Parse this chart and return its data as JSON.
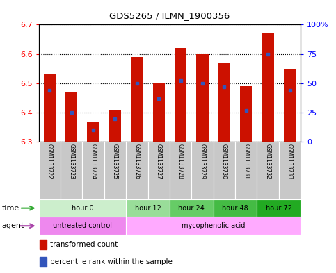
{
  "title": "GDS5265 / ILMN_1900356",
  "samples": [
    "GSM1133722",
    "GSM1133723",
    "GSM1133724",
    "GSM1133725",
    "GSM1133726",
    "GSM1133727",
    "GSM1133728",
    "GSM1133729",
    "GSM1133730",
    "GSM1133731",
    "GSM1133732",
    "GSM1133733"
  ],
  "bar_tops": [
    6.53,
    6.47,
    6.37,
    6.41,
    6.59,
    6.5,
    6.62,
    6.6,
    6.57,
    6.49,
    6.67,
    6.55
  ],
  "percentile_ranks": [
    0.44,
    0.25,
    0.1,
    0.2,
    0.5,
    0.37,
    0.52,
    0.5,
    0.47,
    0.27,
    0.75,
    0.44
  ],
  "ymin": 6.3,
  "ymax": 6.7,
  "bar_color": "#CC1100",
  "blue_color": "#3355BB",
  "bar_width": 0.55,
  "yticks": [
    6.3,
    6.4,
    6.5,
    6.6,
    6.7
  ],
  "right_yticks": [
    0,
    25,
    50,
    75,
    100
  ],
  "right_ylabels": [
    "0",
    "25",
    "50",
    "75",
    "100%"
  ],
  "time_groups": [
    {
      "label": "hour 0",
      "start": 0,
      "end": 3,
      "color": "#CCEECC"
    },
    {
      "label": "hour 12",
      "start": 4,
      "end": 5,
      "color": "#99DD99"
    },
    {
      "label": "hour 24",
      "start": 6,
      "end": 7,
      "color": "#66CC66"
    },
    {
      "label": "hour 48",
      "start": 8,
      "end": 9,
      "color": "#44BB44"
    },
    {
      "label": "hour 72",
      "start": 10,
      "end": 11,
      "color": "#22AA22"
    }
  ],
  "agent_groups": [
    {
      "label": "untreated control",
      "start": 0,
      "end": 3,
      "color": "#EE88EE"
    },
    {
      "label": "mycophenolic acid",
      "start": 4,
      "end": 11,
      "color": "#FFAAFF"
    }
  ],
  "legend_red_label": "transformed count",
  "legend_blue_label": "percentile rank within the sample",
  "time_arrow_color": "#33AA33",
  "agent_arrow_color": "#AA44AA"
}
